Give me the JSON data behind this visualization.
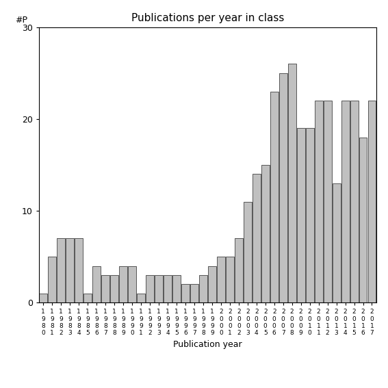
{
  "years": [
    1980,
    1981,
    1982,
    1983,
    1984,
    1985,
    1986,
    1987,
    1988,
    1989,
    1990,
    1991,
    1992,
    1993,
    1994,
    1995,
    1996,
    1997,
    1998,
    1999,
    2000,
    2001,
    2002,
    2003,
    2004,
    2005,
    2006,
    2007,
    2008,
    2009,
    2010,
    2011,
    2012,
    2013,
    2014,
    2015,
    2016,
    2017
  ],
  "values": [
    1,
    5,
    7,
    7,
    7,
    1,
    4,
    3,
    3,
    4,
    4,
    1,
    3,
    3,
    3,
    3,
    2,
    2,
    3,
    4,
    5,
    5,
    7,
    11,
    14,
    15,
    23,
    25,
    26,
    19,
    19,
    22,
    22,
    13,
    22,
    22,
    18,
    22
  ],
  "title": "Publications per year in class",
  "xlabel": "Publication year",
  "ylabel": "#P",
  "ylim": [
    0,
    30
  ],
  "yticks": [
    0,
    10,
    20,
    30
  ],
  "bar_color": "#c0c0c0",
  "bar_edge_color": "#404040",
  "background_color": "#ffffff"
}
